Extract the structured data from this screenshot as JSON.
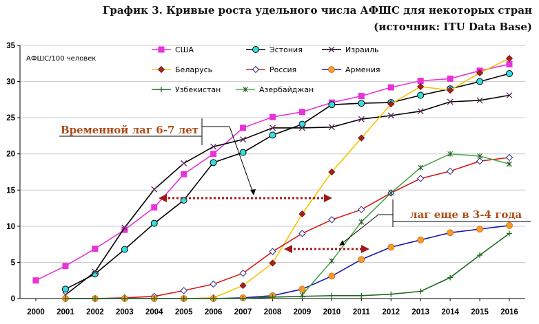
{
  "chart_data": {
    "type": "line",
    "title": "График 3. Кривые роста удельного числа АФШС для некоторых стран",
    "subtitle": "(источник: ITU Data Base)",
    "ylabel": "АФШС/100 человек",
    "xlabel": "",
    "x": [
      2000,
      2001,
      2002,
      2003,
      2004,
      2005,
      2006,
      2007,
      2008,
      2009,
      2010,
      2011,
      2012,
      2013,
      2014,
      2015,
      2016
    ],
    "ylim": [
      0,
      35
    ],
    "yticks": [
      0,
      5,
      10,
      15,
      20,
      25,
      30,
      35
    ],
    "grid": "horizontal",
    "legend_position": "top",
    "series": [
      {
        "name": "США",
        "color": "#e833d8",
        "marker": "square",
        "values": [
          2.5,
          4.5,
          6.9,
          9.5,
          12.6,
          17.2,
          20.0,
          23.6,
          25.1,
          25.8,
          27.1,
          28.0,
          29.2,
          30.1,
          30.4,
          31.5,
          32.4
        ]
      },
      {
        "name": "Эстония",
        "color": "#000000",
        "marker": "circle-cyan",
        "values": [
          null,
          1.3,
          3.4,
          6.8,
          10.4,
          13.6,
          18.8,
          20.2,
          22.6,
          24.1,
          26.8,
          27.0,
          27.1,
          28.1,
          29.0,
          30.0,
          31.1
        ]
      },
      {
        "name": "Израиль",
        "color": "#000000",
        "marker": "x",
        "values": [
          null,
          0.5,
          3.7,
          9.8,
          15.1,
          18.7,
          21.0,
          22.0,
          23.6,
          23.6,
          23.7,
          24.8,
          25.3,
          25.9,
          27.2,
          27.4,
          28.1
        ]
      },
      {
        "name": "Беларусь",
        "color": "#f5c400",
        "marker": "diamond-red",
        "values": [
          null,
          null,
          null,
          null,
          null,
          0.0,
          0.1,
          1.8,
          4.9,
          11.7,
          17.5,
          22.2,
          26.9,
          29.3,
          28.8,
          31.2,
          33.2
        ]
      },
      {
        "name": "Россия",
        "color": "#d51a1a",
        "marker": "diamond-white",
        "values": [
          null,
          0.0,
          0.0,
          0.1,
          0.3,
          1.1,
          2.0,
          3.5,
          6.5,
          9.0,
          10.9,
          12.3,
          14.6,
          16.6,
          17.6,
          19.0,
          19.5
        ]
      },
      {
        "name": "Армения",
        "color": "#1a1ab0",
        "marker": "circle-orange",
        "values": [
          null,
          0.0,
          0.0,
          0.0,
          0.0,
          0.0,
          0.0,
          0.1,
          0.4,
          1.3,
          3.1,
          5.4,
          7.1,
          8.1,
          9.1,
          9.6,
          10.1
        ]
      },
      {
        "name": "Узбекистан",
        "color": "#1e6b1e",
        "marker": "plus",
        "values": [
          null,
          0.0,
          0.0,
          0.0,
          0.0,
          0.0,
          0.0,
          0.0,
          0.2,
          0.3,
          0.4,
          0.4,
          0.6,
          1.0,
          2.9,
          6.0,
          9.0
        ]
      },
      {
        "name": "Азербайджан",
        "color": "#4aa84a",
        "marker": "star",
        "values": [
          null,
          null,
          null,
          null,
          null,
          null,
          null,
          null,
          null,
          0.5,
          5.2,
          10.6,
          14.6,
          18.1,
          20.0,
          19.7,
          18.6
        ]
      }
    ],
    "annotations": [
      {
        "text": "Временной лаг 6-7 лет"
      },
      {
        "text": "лаг еще в 3-4 года"
      }
    ]
  }
}
